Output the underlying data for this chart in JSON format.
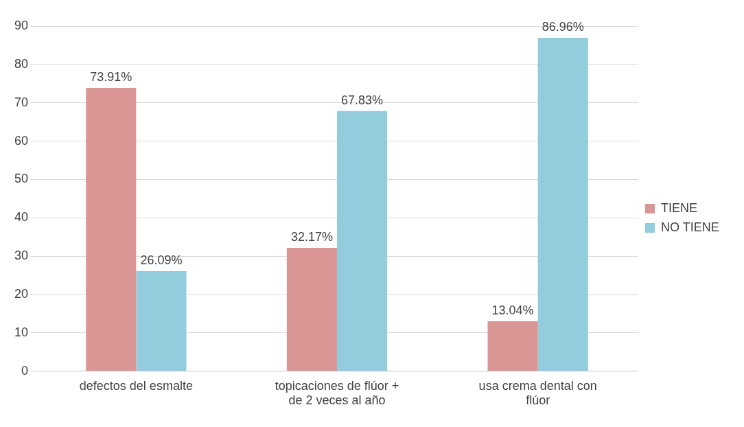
{
  "chart_data": {
    "type": "bar",
    "categories": [
      "defectos del esmalte",
      "topicaciones de flúor + de 2 veces al año",
      "usa crema dental con flúor"
    ],
    "series": [
      {
        "name": "TIENE",
        "color": "#d99694",
        "values": [
          73.91,
          32.17,
          13.04
        ],
        "value_labels": [
          "73.91%",
          "32.17%",
          "13.04%"
        ]
      },
      {
        "name": "NO TIENE",
        "color": "#93cddd",
        "values": [
          26.09,
          67.83,
          86.96
        ],
        "value_labels": [
          "26.09%",
          "67.83%",
          "86.96%"
        ]
      }
    ],
    "ylim": [
      0,
      90
    ],
    "yticks": [
      0,
      10,
      20,
      30,
      40,
      50,
      60,
      70,
      80,
      90
    ],
    "grid": "y",
    "legend": "right"
  }
}
